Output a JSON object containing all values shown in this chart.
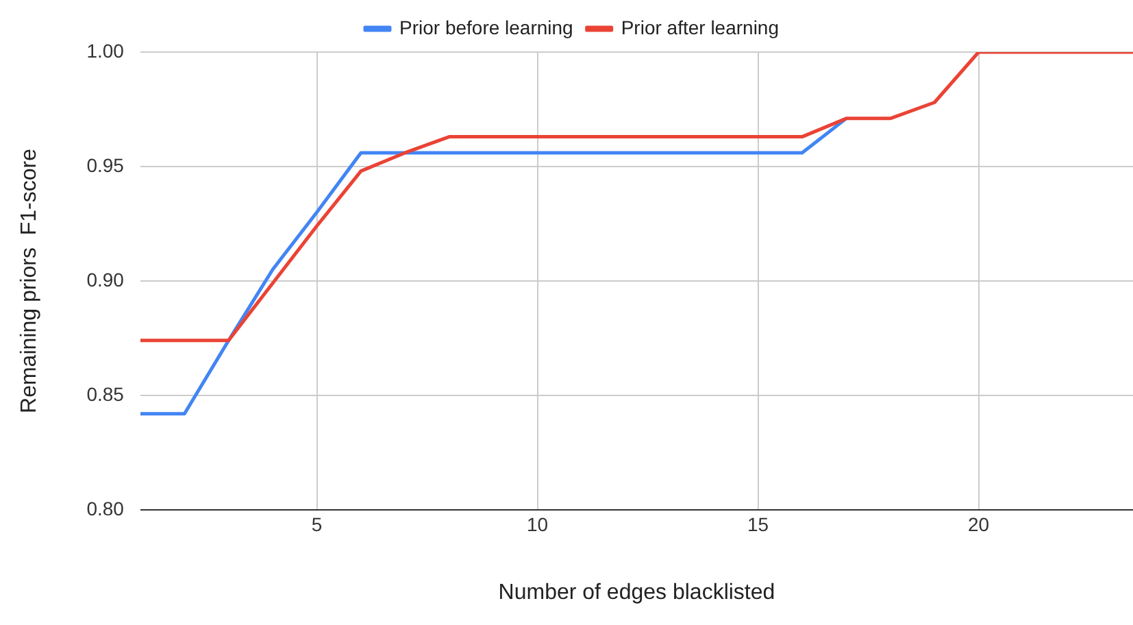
{
  "chart_data": {
    "type": "line",
    "xlabel": "Number of edges blacklisted",
    "ylabel": "Remaining priors  F1-score",
    "x": [
      1,
      2,
      3,
      4,
      5,
      6,
      7,
      8,
      9,
      10,
      11,
      12,
      13,
      14,
      15,
      16,
      17,
      18,
      19,
      20,
      21,
      22,
      23,
      23.5
    ],
    "series": [
      {
        "name": "Prior before learning",
        "color": "#4285f4",
        "values": [
          0.842,
          0.842,
          0.874,
          0.905,
          0.93,
          0.956,
          0.956,
          0.956,
          0.956,
          0.956,
          0.956,
          0.956,
          0.956,
          0.956,
          0.956,
          0.956,
          0.971,
          null,
          null,
          null,
          null,
          null,
          null,
          null
        ]
      },
      {
        "name": "Prior after learning",
        "color": "#ea4335",
        "values": [
          0.874,
          0.874,
          0.874,
          0.899,
          0.924,
          0.948,
          0.956,
          0.963,
          0.963,
          0.963,
          0.963,
          0.963,
          0.963,
          0.963,
          0.963,
          0.963,
          0.971,
          0.971,
          0.978,
          1.0,
          1.0,
          1.0,
          1.0,
          1.0
        ]
      }
    ],
    "xlim": [
      1,
      23.5
    ],
    "xticks": [
      5,
      10,
      15,
      20
    ],
    "ylim": [
      0.8,
      1.0
    ],
    "yticks": [
      {
        "value": 0.8,
        "label": "0.80"
      },
      {
        "value": 0.85,
        "label": "0.85"
      },
      {
        "value": 0.9,
        "label": "0.90"
      },
      {
        "value": 0.95,
        "label": "0.95"
      },
      {
        "value": 1.0,
        "label": "1.00"
      }
    ],
    "grid": true,
    "legend": "top",
    "marker": "none",
    "line_style": "solid"
  }
}
